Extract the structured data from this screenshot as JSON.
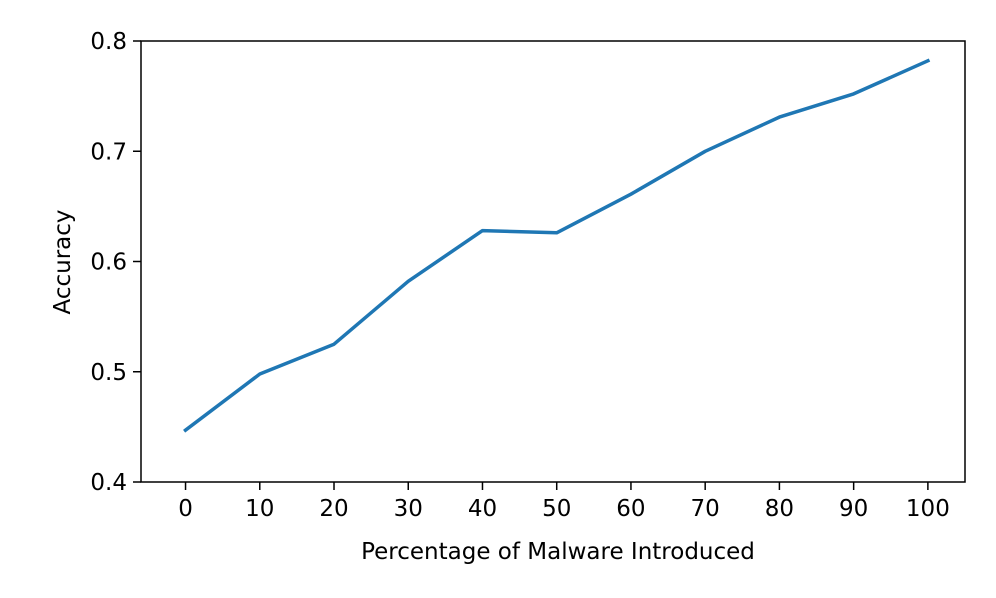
{
  "chart_data": {
    "type": "line",
    "title": "",
    "xlabel": "Percentage of Malware Introduced",
    "ylabel": "Accuracy",
    "x": [
      0,
      10,
      20,
      30,
      40,
      50,
      60,
      70,
      80,
      90,
      100
    ],
    "series": [
      {
        "values": [
          0.447,
          0.498,
          0.525,
          0.582,
          0.628,
          0.626,
          0.661,
          0.7,
          0.731,
          0.752,
          0.782
        ],
        "color": "#1f77b4"
      }
    ],
    "xlim": [
      -6,
      105
    ],
    "ylim": [
      0.4,
      0.8
    ],
    "xticks": [
      "0",
      "10",
      "20",
      "30",
      "40",
      "50",
      "60",
      "70",
      "80",
      "90",
      "100"
    ],
    "yticks": [
      "0.4",
      "0.5",
      "0.6",
      "0.7",
      "0.8"
    ],
    "grid": false,
    "legend": "none"
  }
}
